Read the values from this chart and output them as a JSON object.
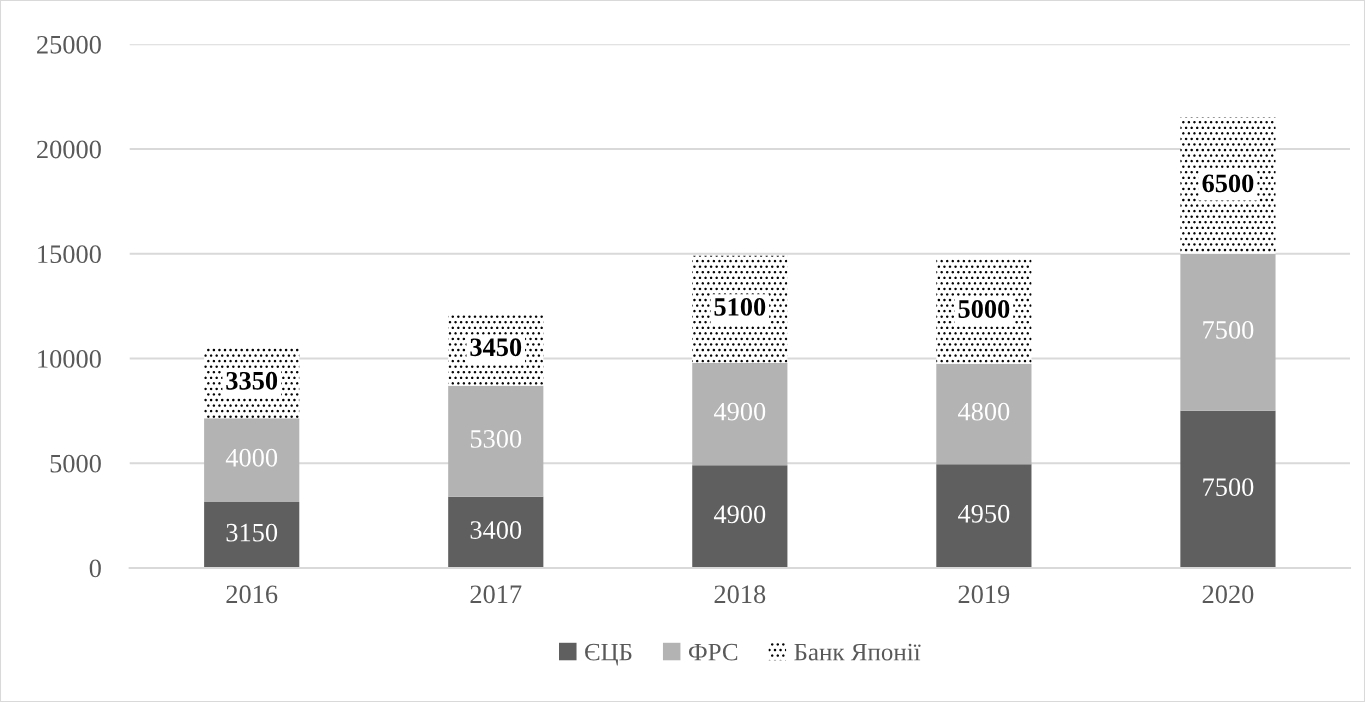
{
  "chart_data": {
    "type": "bar",
    "stacked": true,
    "categories": [
      "2016",
      "2017",
      "2018",
      "2019",
      "2020"
    ],
    "series": [
      {
        "name": "ЄЦБ",
        "color": "#5f5f5f",
        "values": [
          3150,
          3400,
          4900,
          4950,
          7500
        ]
      },
      {
        "name": "ФРС",
        "color": "#b3b3b3",
        "values": [
          4000,
          5300,
          4900,
          4800,
          7500
        ]
      },
      {
        "name": "Банк Японії",
        "color": "#000000",
        "values": [
          3350,
          3450,
          5100,
          5000,
          6500
        ]
      }
    ],
    "ylim": [
      0,
      25000
    ],
    "yticks": [
      0,
      5000,
      10000,
      15000,
      20000,
      25000
    ],
    "grid": "y",
    "legend": "bottom",
    "data_labels": true
  }
}
